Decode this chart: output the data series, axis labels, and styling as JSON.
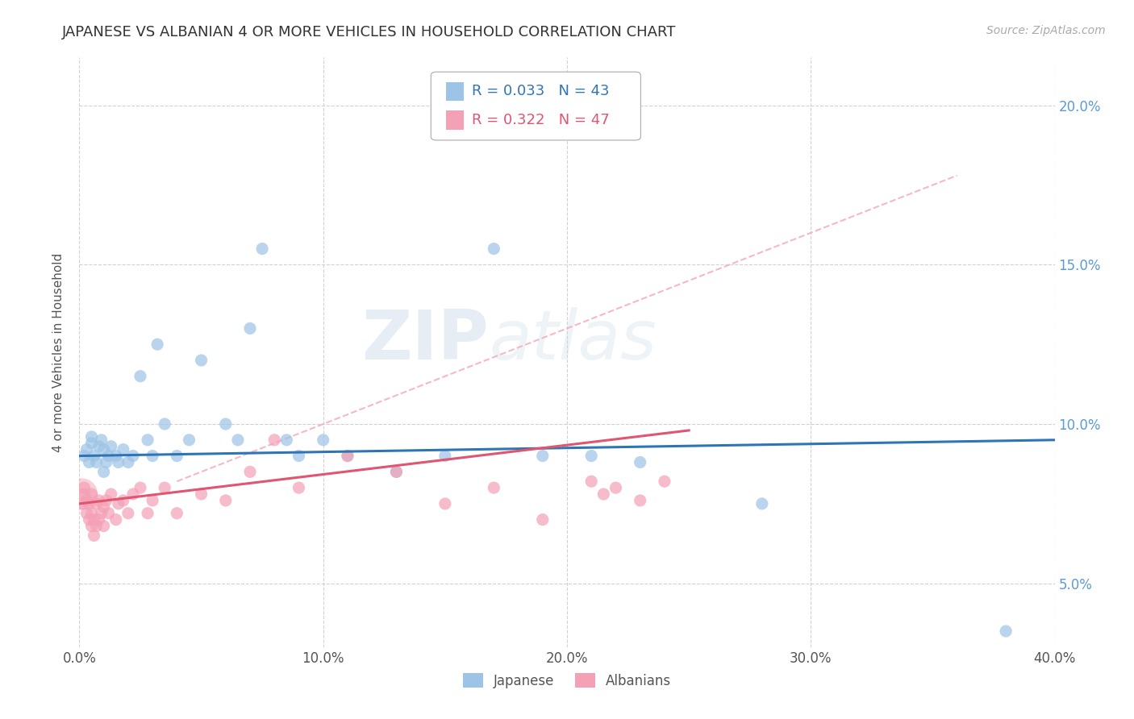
{
  "title": "JAPANESE VS ALBANIAN 4 OR MORE VEHICLES IN HOUSEHOLD CORRELATION CHART",
  "source_text": "Source: ZipAtlas.com",
  "ylabel": "4 or more Vehicles in Household",
  "xlim": [
    0.0,
    0.4
  ],
  "ylim": [
    0.03,
    0.215
  ],
  "xtick_labels": [
    "0.0%",
    "10.0%",
    "20.0%",
    "30.0%",
    "40.0%"
  ],
  "xtick_values": [
    0.0,
    0.1,
    0.2,
    0.3,
    0.4
  ],
  "ytick_labels": [
    "5.0%",
    "10.0%",
    "15.0%",
    "20.0%"
  ],
  "ytick_values": [
    0.05,
    0.1,
    0.15,
    0.2
  ],
  "ytick_color": "#5b9bd5",
  "japanese_color": "#9dc3e6",
  "albanian_color": "#f4a0b5",
  "japanese_R": 0.033,
  "japanese_N": 43,
  "albanian_R": 0.322,
  "albanian_N": 47,
  "japanese_line_color": "#2e75b6",
  "albanian_line_color": "#e05570",
  "diag_line_color": "#f4acba",
  "watermark_zip": "ZIP",
  "watermark_atlas": "atlas",
  "background_color": "#ffffff",
  "grid_color": "#cccccc",
  "japanese_x": [
    0.002,
    0.003,
    0.004,
    0.005,
    0.005,
    0.006,
    0.007,
    0.008,
    0.009,
    0.01,
    0.01,
    0.011,
    0.012,
    0.013,
    0.015,
    0.016,
    0.018,
    0.02,
    0.022,
    0.025,
    0.028,
    0.03,
    0.032,
    0.035,
    0.04,
    0.045,
    0.05,
    0.06,
    0.065,
    0.07,
    0.075,
    0.085,
    0.09,
    0.1,
    0.11,
    0.13,
    0.15,
    0.17,
    0.19,
    0.21,
    0.23,
    0.28,
    0.38
  ],
  "japanese_y": [
    0.09,
    0.092,
    0.088,
    0.094,
    0.096,
    0.09,
    0.088,
    0.093,
    0.095,
    0.085,
    0.092,
    0.088,
    0.09,
    0.093,
    0.09,
    0.088,
    0.092,
    0.088,
    0.09,
    0.115,
    0.095,
    0.09,
    0.125,
    0.1,
    0.09,
    0.095,
    0.12,
    0.1,
    0.095,
    0.13,
    0.155,
    0.095,
    0.09,
    0.095,
    0.09,
    0.085,
    0.09,
    0.155,
    0.09,
    0.09,
    0.088,
    0.075,
    0.035
  ],
  "albanian_x": [
    0.001,
    0.002,
    0.002,
    0.003,
    0.003,
    0.004,
    0.004,
    0.005,
    0.005,
    0.005,
    0.006,
    0.006,
    0.007,
    0.007,
    0.008,
    0.008,
    0.009,
    0.01,
    0.01,
    0.011,
    0.012,
    0.013,
    0.015,
    0.016,
    0.018,
    0.02,
    0.022,
    0.025,
    0.028,
    0.03,
    0.035,
    0.04,
    0.05,
    0.06,
    0.07,
    0.08,
    0.09,
    0.11,
    0.13,
    0.15,
    0.17,
    0.19,
    0.21,
    0.215,
    0.22,
    0.23,
    0.24
  ],
  "albanian_y": [
    0.075,
    0.078,
    0.08,
    0.072,
    0.076,
    0.07,
    0.075,
    0.068,
    0.072,
    0.078,
    0.065,
    0.07,
    0.068,
    0.075,
    0.07,
    0.076,
    0.072,
    0.068,
    0.074,
    0.076,
    0.072,
    0.078,
    0.07,
    0.075,
    0.076,
    0.072,
    0.078,
    0.08,
    0.072,
    0.076,
    0.08,
    0.072,
    0.078,
    0.076,
    0.085,
    0.095,
    0.08,
    0.09,
    0.085,
    0.075,
    0.08,
    0.07,
    0.082,
    0.078,
    0.08,
    0.076,
    0.082
  ],
  "albanian_big_x": [
    0.001
  ],
  "albanian_big_y": [
    0.078
  ],
  "legend_R1_color": "#2e75b6",
  "legend_R2_color": "#e05570"
}
